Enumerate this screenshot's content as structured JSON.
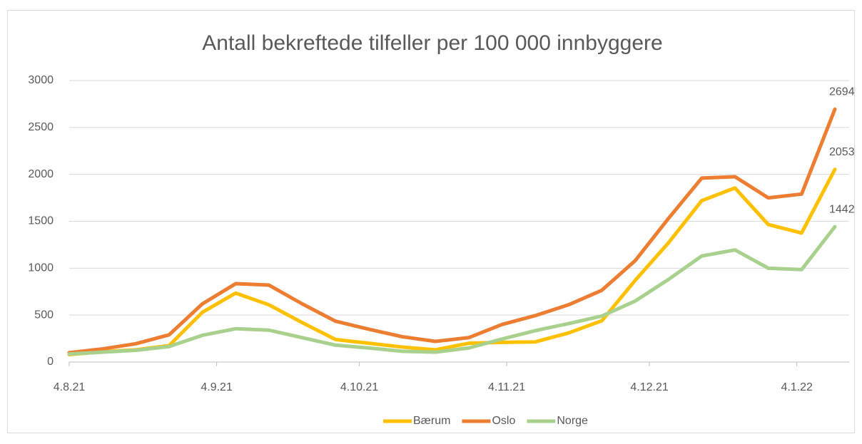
{
  "chart_data": {
    "type": "line",
    "title": "Antall bekreftede tilfeller per 100 000 innbyggere",
    "x": [
      "2021-08-04",
      "2021-08-11",
      "2021-08-18",
      "2021-08-25",
      "2021-09-01",
      "2021-09-08",
      "2021-09-15",
      "2021-09-22",
      "2021-09-29",
      "2021-10-06",
      "2021-10-13",
      "2021-10-20",
      "2021-10-27",
      "2021-11-03",
      "2021-11-10",
      "2021-11-17",
      "2021-11-24",
      "2021-12-01",
      "2021-12-08",
      "2021-12-15",
      "2021-12-22",
      "2021-12-29",
      "2022-01-05",
      "2022-01-12"
    ],
    "series": [
      {
        "name": "Bærum",
        "color": "#ffc000",
        "values": [
          80,
          110,
          130,
          175,
          530,
          735,
          610,
          420,
          240,
          200,
          160,
          130,
          200,
          210,
          215,
          310,
          440,
          870,
          1270,
          1720,
          1855,
          1465,
          1375,
          2053
        ]
      },
      {
        "name": "Oslo",
        "color": "#ed7d31",
        "values": [
          100,
          140,
          195,
          290,
          620,
          835,
          820,
          620,
          435,
          350,
          270,
          220,
          260,
          400,
          495,
          610,
          765,
          1080,
          1530,
          1960,
          1975,
          1750,
          1790,
          2694
        ]
      },
      {
        "name": "Norge",
        "color": "#a9d18e",
        "values": [
          85,
          105,
          125,
          165,
          285,
          355,
          340,
          260,
          180,
          150,
          115,
          105,
          150,
          245,
          335,
          410,
          490,
          650,
          880,
          1130,
          1195,
          1000,
          985,
          1442
        ]
      }
    ],
    "xlim": [
      "2021-08-04",
      "2022-01-12"
    ],
    "xticks": [
      {
        "value": "2021-08-04",
        "label": "4.8.21"
      },
      {
        "value": "2021-09-04",
        "label": "4.9.21"
      },
      {
        "value": "2021-10-04",
        "label": "4.10.21"
      },
      {
        "value": "2021-11-04",
        "label": "4.11.21"
      },
      {
        "value": "2021-12-04",
        "label": "4.12.21"
      },
      {
        "value": "2022-01-04",
        "label": "4.1.22"
      }
    ],
    "ylim": [
      0,
      3000
    ],
    "yticks": [
      0,
      500,
      1000,
      1500,
      2000,
      2500,
      3000
    ],
    "grid": true,
    "legend": "bottom"
  }
}
